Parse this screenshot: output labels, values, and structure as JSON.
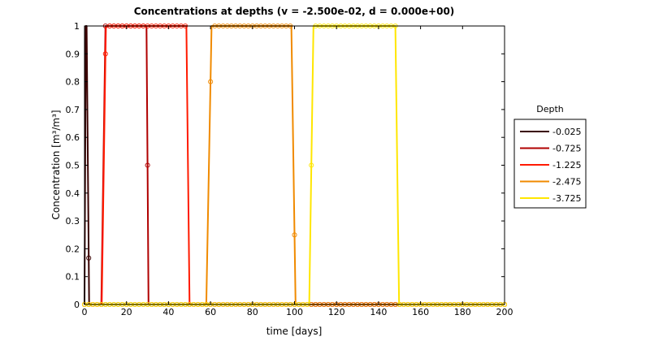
{
  "chart_data": {
    "type": "line",
    "title": "Concentrations at depths (v = -2.500e-02, d = 0.000e+00)",
    "xlabel": "time [days]",
    "ylabel": "Concentration [m³/m³]",
    "xlim": [
      0,
      200
    ],
    "ylim": [
      0,
      1
    ],
    "xticks": [
      0,
      20,
      40,
      60,
      80,
      100,
      120,
      140,
      160,
      180,
      200
    ],
    "yticks": [
      0,
      0.1,
      0.2,
      0.3,
      0.4,
      0.5,
      0.6,
      0.7,
      0.8,
      0.9,
      1
    ],
    "grid": false,
    "marker": "circle",
    "legend": {
      "title": "Depth",
      "position": "right"
    },
    "series": [
      {
        "name": "-0.025",
        "color": "#3a0000",
        "rise": [
          0,
          0.6
        ],
        "fall": [
          1,
          2.2
        ]
      },
      {
        "name": "-0.725",
        "color": "#b00000",
        "rise": [
          8,
          10
        ],
        "fall": [
          29.5,
          30.5
        ]
      },
      {
        "name": "-1.225",
        "color": "#ff1a00",
        "rise": [
          8.2,
          10.2
        ],
        "fall": [
          48.5,
          50
        ]
      },
      {
        "name": "-2.475",
        "color": "#f08a00",
        "rise": [
          58,
          60.5
        ],
        "fall": [
          98.5,
          100.5
        ]
      },
      {
        "name": "-3.725",
        "color": "#ffe600",
        "rise": [
          107,
          109
        ],
        "fall": [
          148,
          149.8
        ]
      }
    ]
  }
}
